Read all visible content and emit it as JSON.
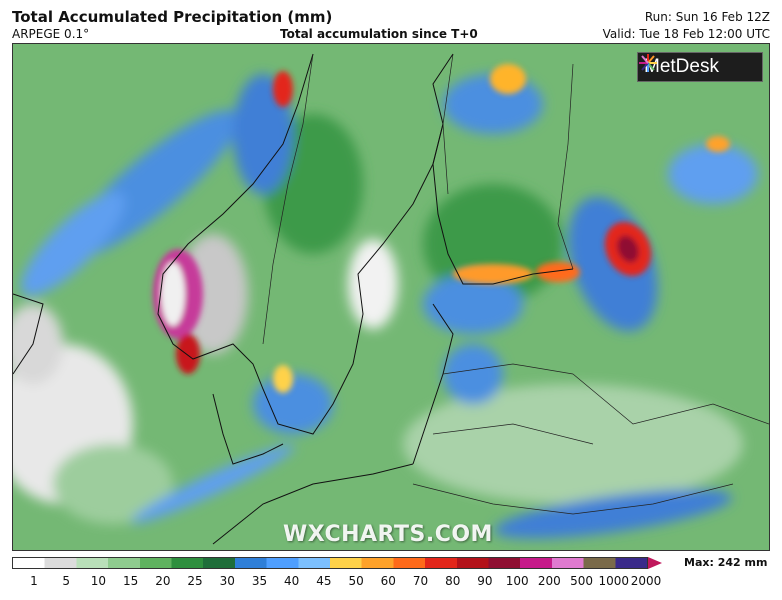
{
  "header": {
    "title": "Total Accumulated Precipitation (mm)",
    "model": "ARPEGE 0.1°",
    "subtitle": "Total accumulation since T+0",
    "run": "Run: Sun 16 Feb 12Z",
    "valid": "Valid: Tue 18 Feb 12:00 UTC"
  },
  "logo": {
    "text": "MetDesk",
    "icon": "metdesk-starburst-icon"
  },
  "watermark": "WXCHARTS.COM",
  "legend": {
    "max_label": "Max: 242 mm",
    "ticks": [
      "1",
      "5",
      "10",
      "15",
      "20",
      "25",
      "30",
      "35",
      "40",
      "45",
      "50",
      "60",
      "70",
      "80",
      "90",
      "100",
      "200",
      "500",
      "1000",
      "2000"
    ],
    "colors": [
      "#ffffff",
      "#dcdcdc",
      "#b9e0b9",
      "#8fcc8f",
      "#5fb25f",
      "#2e8f3e",
      "#1f6e3a",
      "#2f7fd8",
      "#4f9fff",
      "#7cc0ff",
      "#ffd24a",
      "#ffa22a",
      "#ff6a1a",
      "#e3261a",
      "#b3121a",
      "#8f0f32",
      "#c61a8a",
      "#e07ad0",
      "#7a6a4a",
      "#3a2a8a"
    ]
  }
}
